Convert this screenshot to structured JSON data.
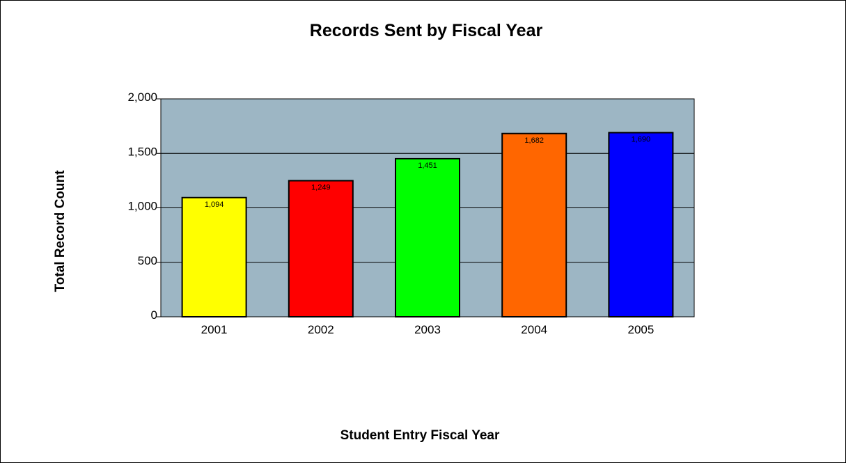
{
  "chart_data": {
    "type": "bar",
    "title": "Records Sent by Fiscal Year",
    "xlabel": "Student Entry Fiscal Year",
    "ylabel": "Total Record Count",
    "categories": [
      "2001",
      "2002",
      "2003",
      "2004",
      "2005"
    ],
    "values": [
      1094,
      1249,
      1451,
      1682,
      1690
    ],
    "data_labels": [
      "1,094",
      "1,249",
      "1,451",
      "1,682",
      "1,690"
    ],
    "ylim": [
      0,
      2000
    ],
    "yticks": [
      0,
      500,
      1000,
      1500,
      2000
    ],
    "ytick_labels": [
      "0",
      "500",
      "1,000",
      "1,500",
      "2,000"
    ],
    "bar_colors": [
      "#ffff00",
      "#ff0000",
      "#00ff00",
      "#ff6600",
      "#0000ff"
    ],
    "plot_background": "#9db6c4",
    "grid": true,
    "legend": "none"
  }
}
